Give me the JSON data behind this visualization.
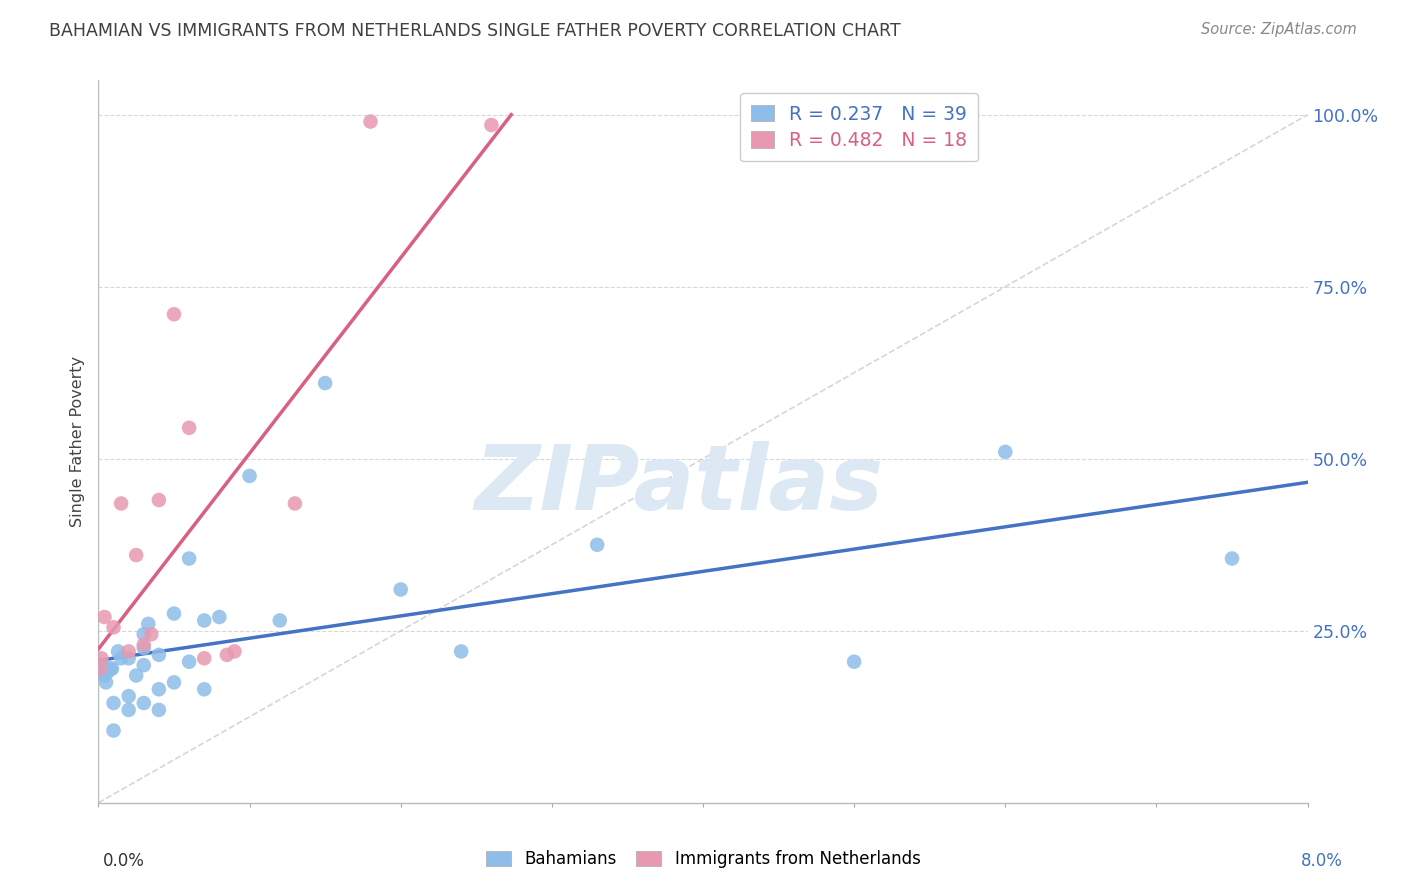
{
  "title": "BAHAMIAN VS IMMIGRANTS FROM NETHERLANDS SINGLE FATHER POVERTY CORRELATION CHART",
  "source": "Source: ZipAtlas.com",
  "ylabel": "Single Father Poverty",
  "y_ticks": [
    0.0,
    0.25,
    0.5,
    0.75,
    1.0
  ],
  "y_tick_labels_right": [
    "",
    "25.0%",
    "50.0%",
    "75.0%",
    "100.0%"
  ],
  "xlim": [
    0.0,
    0.08
  ],
  "ylim": [
    0.0,
    1.05
  ],
  "blue_x": [
    0.0002,
    0.0003,
    0.0004,
    0.0005,
    0.0006,
    0.0008,
    0.0009,
    0.001,
    0.001,
    0.0013,
    0.0015,
    0.002,
    0.002,
    0.002,
    0.0025,
    0.003,
    0.003,
    0.003,
    0.003,
    0.0033,
    0.004,
    0.004,
    0.004,
    0.005,
    0.005,
    0.006,
    0.006,
    0.007,
    0.007,
    0.008,
    0.01,
    0.012,
    0.015,
    0.02,
    0.024,
    0.033,
    0.05,
    0.06,
    0.075
  ],
  "blue_y": [
    0.19,
    0.2,
    0.185,
    0.175,
    0.19,
    0.195,
    0.195,
    0.105,
    0.145,
    0.22,
    0.21,
    0.135,
    0.155,
    0.21,
    0.185,
    0.145,
    0.2,
    0.225,
    0.245,
    0.26,
    0.135,
    0.165,
    0.215,
    0.175,
    0.275,
    0.205,
    0.355,
    0.165,
    0.265,
    0.27,
    0.475,
    0.265,
    0.61,
    0.31,
    0.22,
    0.375,
    0.205,
    0.51,
    0.355
  ],
  "pink_x": [
    0.0001,
    0.0002,
    0.0004,
    0.001,
    0.0015,
    0.002,
    0.0025,
    0.003,
    0.0035,
    0.004,
    0.005,
    0.006,
    0.007,
    0.0085,
    0.009,
    0.013,
    0.018,
    0.026
  ],
  "pink_y": [
    0.195,
    0.21,
    0.27,
    0.255,
    0.435,
    0.22,
    0.36,
    0.23,
    0.245,
    0.44,
    0.71,
    0.545,
    0.21,
    0.215,
    0.22,
    0.435,
    0.99,
    0.985
  ],
  "blue_color": "#8dbde8",
  "pink_color": "#e899b0",
  "blue_line_color": "#4472c4",
  "pink_line_color": "#d96080",
  "diagonal_color": "#cccccc",
  "watermark_text": "ZIPatlas",
  "watermark_color": "#dce8f4",
  "legend_label_blue": "Bahamians",
  "legend_label_pink": "Immigrants from Netherlands",
  "right_axis_color": "#4472c4",
  "pink_text_color": "#d96080",
  "title_color": "#404040",
  "source_color": "#888888"
}
